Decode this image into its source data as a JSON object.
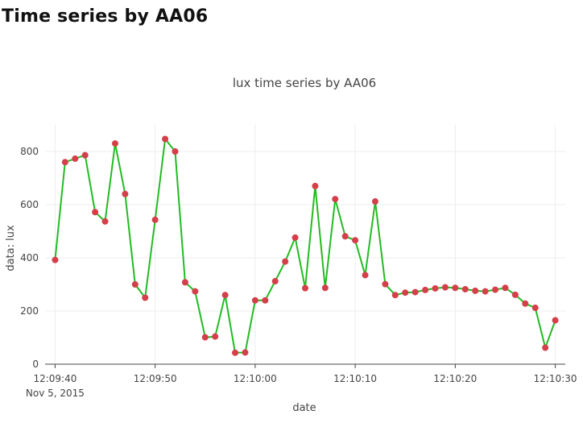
{
  "page": {
    "heading": "Time series by AA06"
  },
  "chart_data": {
    "type": "line",
    "title": "lux time series by AA06",
    "xlabel": "date",
    "ylabel": "data: lux",
    "ylim": [
      0,
      900
    ],
    "xlim": [
      "2015-11-05T12:09:39",
      "2015-11-05T12:10:31"
    ],
    "y_ticks": [
      0,
      200,
      400,
      600,
      800
    ],
    "x_ticks": [
      {
        "time": "2015-11-05T12:09:40",
        "label": "12:09:40",
        "sublabel": "Nov 5, 2015"
      },
      {
        "time": "2015-11-05T12:09:50",
        "label": "12:09:50"
      },
      {
        "time": "2015-11-05T12:10:00",
        "label": "12:10:00"
      },
      {
        "time": "2015-11-05T12:10:10",
        "label": "12:10:10"
      },
      {
        "time": "2015-11-05T12:10:20",
        "label": "12:10:20"
      },
      {
        "time": "2015-11-05T12:10:30",
        "label": "12:10:30"
      }
    ],
    "grid": true,
    "line_color": "#22bb22",
    "marker_color": "#d43f4a",
    "series": [
      {
        "x": [
          "2015-11-05T12:09:40",
          "2015-11-05T12:09:41",
          "2015-11-05T12:09:42",
          "2015-11-05T12:09:43",
          "2015-11-05T12:09:44",
          "2015-11-05T12:09:45",
          "2015-11-05T12:09:46",
          "2015-11-05T12:09:47",
          "2015-11-05T12:09:48",
          "2015-11-05T12:09:49",
          "2015-11-05T12:09:50",
          "2015-11-05T12:09:51",
          "2015-11-05T12:09:52",
          "2015-11-05T12:09:53",
          "2015-11-05T12:09:54",
          "2015-11-05T12:09:55",
          "2015-11-05T12:09:56",
          "2015-11-05T12:09:57",
          "2015-11-05T12:09:58",
          "2015-11-05T12:09:59",
          "2015-11-05T12:10:00",
          "2015-11-05T12:10:01",
          "2015-11-05T12:10:02",
          "2015-11-05T12:10:03",
          "2015-11-05T12:10:04",
          "2015-11-05T12:10:05",
          "2015-11-05T12:10:06",
          "2015-11-05T12:10:07",
          "2015-11-05T12:10:08",
          "2015-11-05T12:10:09",
          "2015-11-05T12:10:10",
          "2015-11-05T12:10:11",
          "2015-11-05T12:10:12",
          "2015-11-05T12:10:13",
          "2015-11-05T12:10:14",
          "2015-11-05T12:10:15",
          "2015-11-05T12:10:16",
          "2015-11-05T12:10:17",
          "2015-11-05T12:10:18",
          "2015-11-05T12:10:19",
          "2015-11-05T12:10:20",
          "2015-11-05T12:10:21",
          "2015-11-05T12:10:22",
          "2015-11-05T12:10:23",
          "2015-11-05T12:10:24",
          "2015-11-05T12:10:25",
          "2015-11-05T12:10:26",
          "2015-11-05T12:10:27",
          "2015-11-05T12:10:28",
          "2015-11-05T12:10:29",
          "2015-11-05T12:10:30"
        ],
        "y": [
          392,
          760,
          773,
          786,
          572,
          537,
          830,
          640,
          300,
          250,
          543,
          847,
          800,
          308,
          274,
          101,
          104,
          260,
          43,
          44,
          240,
          240,
          312,
          386,
          476,
          286,
          670,
          287,
          621,
          481,
          466,
          335,
          612,
          301,
          260,
          269,
          271,
          279,
          285,
          289,
          287,
          282,
          276,
          274,
          280,
          287,
          261,
          228,
          212,
          62,
          165
        ]
      }
    ]
  }
}
